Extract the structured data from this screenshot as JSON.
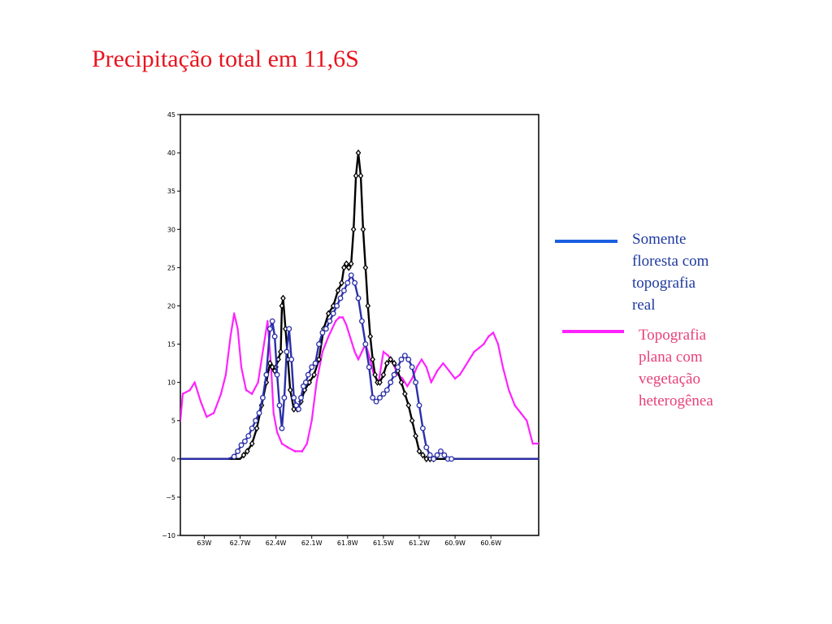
{
  "slide": {
    "title": "Precipitação total em 11,6S"
  },
  "chart_data": {
    "type": "line",
    "title": "",
    "xlabel": "",
    "ylabel": "",
    "xlim": [
      -63.2,
      -60.2
    ],
    "ylim": [
      -10,
      45
    ],
    "y_ticks": [
      -10,
      -5,
      0,
      5,
      10,
      15,
      20,
      25,
      30,
      35,
      40,
      45
    ],
    "y_tick_labels": [
      "−10",
      "−5",
      "0",
      "5",
      "10",
      "15",
      "20",
      "25",
      "30",
      "35",
      "40",
      "45"
    ],
    "x_ticks": [
      -63.0,
      -62.7,
      -62.4,
      -62.1,
      -61.8,
      -61.5,
      -61.2,
      -60.9,
      -60.6
    ],
    "x_tick_labels": [
      "63W",
      "62.7W",
      "62.4W",
      "62.1W",
      "61.8W",
      "61.5W",
      "61.2W",
      "60.9W",
      "60.6W"
    ],
    "grid": false,
    "legend_position": "right",
    "series": [
      {
        "name": "Topografia plana com vegetação heterogênea",
        "color": "#ff22ff",
        "marker": "none",
        "x": [
          -63.2,
          -63.18,
          -63.12,
          -63.08,
          -63.03,
          -62.98,
          -62.92,
          -62.86,
          -62.82,
          -62.78,
          -62.75,
          -62.72,
          -62.69,
          -62.65,
          -62.6,
          -62.55,
          -62.5,
          -62.47,
          -62.44,
          -62.42,
          -62.39,
          -62.35,
          -62.3,
          -62.24,
          -62.18,
          -62.14,
          -62.1,
          -62.06,
          -62.01,
          -61.96,
          -61.93,
          -61.9,
          -61.87,
          -61.84,
          -61.81,
          -61.78,
          -61.74,
          -61.71,
          -61.68,
          -61.65,
          -61.62,
          -61.58,
          -61.54,
          -61.5,
          -61.46,
          -61.42,
          -61.38,
          -61.34,
          -61.3,
          -61.26,
          -61.22,
          -61.18,
          -61.14,
          -61.1,
          -61.05,
          -61.0,
          -60.95,
          -60.9,
          -60.86,
          -60.82,
          -60.78,
          -60.74,
          -60.7,
          -60.66,
          -60.62,
          -60.58,
          -60.54,
          -60.5,
          -60.45,
          -60.4,
          -60.35,
          -60.3,
          -60.25,
          -60.2
        ],
        "y": [
          5,
          8.5,
          9,
          10,
          7.5,
          5.5,
          6,
          8.5,
          11,
          16,
          19,
          17,
          12,
          9,
          8.5,
          10,
          15,
          18,
          12,
          6,
          3.5,
          2,
          1.5,
          1,
          1,
          2,
          5,
          10,
          14,
          16,
          17,
          18,
          18.5,
          18.5,
          17.5,
          16,
          14,
          13,
          14,
          15,
          13.5,
          11,
          10,
          14,
          13.5,
          12.5,
          11,
          10.5,
          9.5,
          10.5,
          12,
          13,
          12,
          10,
          11.5,
          12.5,
          11.5,
          10.5,
          11,
          12,
          13,
          14,
          14.5,
          15,
          16,
          16.5,
          15,
          12,
          9,
          7,
          6,
          5,
          2,
          2
        ]
      },
      {
        "name": "",
        "color": "#000000",
        "marker": "diamond",
        "x": [
          -63.2,
          -63.0,
          -62.8,
          -62.7,
          -62.67,
          -62.64,
          -62.6,
          -62.56,
          -62.52,
          -62.48,
          -62.45,
          -62.43,
          -62.41,
          -62.4,
          -62.38,
          -62.36,
          -62.35,
          -62.34,
          -62.32,
          -62.3,
          -62.28,
          -62.25,
          -62.22,
          -62.19,
          -62.16,
          -62.12,
          -62.08,
          -62.04,
          -62.0,
          -61.96,
          -61.92,
          -61.88,
          -61.85,
          -61.83,
          -61.81,
          -61.79,
          -61.77,
          -61.75,
          -61.73,
          -61.71,
          -61.69,
          -61.67,
          -61.65,
          -61.63,
          -61.61,
          -61.59,
          -61.57,
          -61.55,
          -61.53,
          -61.5,
          -61.47,
          -61.44,
          -61.41,
          -61.38,
          -61.35,
          -61.32,
          -61.29,
          -61.26,
          -61.23,
          -61.2,
          -61.17,
          -61.14,
          -61.11,
          -61.08,
          -61.05,
          -61.0,
          -60.9,
          -60.8,
          -60.6,
          -60.2
        ],
        "y": [
          0,
          0,
          0,
          0,
          0.5,
          1,
          2,
          4,
          7,
          10,
          12.5,
          12,
          11.5,
          12,
          13,
          14,
          20,
          21,
          17,
          13,
          9,
          6.5,
          6.5,
          7.5,
          9,
          10,
          11,
          13,
          17,
          19,
          20,
          22,
          23,
          25,
          25.5,
          25,
          25.5,
          30,
          37,
          40,
          37,
          30,
          25,
          20,
          16,
          13,
          11,
          10,
          10,
          11,
          12.5,
          13,
          12.5,
          11.5,
          10,
          8.5,
          7,
          5,
          3,
          1,
          0.5,
          0,
          0,
          0,
          0,
          0,
          0,
          0,
          0,
          0
        ]
      },
      {
        "name": "Somente floresta com topografia real",
        "color": "#2b2fa8",
        "marker": "circle",
        "x": [
          -63.2,
          -63.0,
          -62.8,
          -62.75,
          -62.72,
          -62.69,
          -62.66,
          -62.63,
          -62.6,
          -62.57,
          -62.54,
          -62.51,
          -62.48,
          -62.45,
          -62.43,
          -62.41,
          -62.39,
          -62.37,
          -62.35,
          -62.33,
          -62.31,
          -62.29,
          -62.27,
          -62.25,
          -62.23,
          -62.21,
          -62.19,
          -62.17,
          -62.15,
          -62.13,
          -62.1,
          -62.07,
          -62.04,
          -62.01,
          -61.98,
          -61.95,
          -61.92,
          -61.89,
          -61.86,
          -61.83,
          -61.8,
          -61.77,
          -61.74,
          -61.71,
          -61.68,
          -61.65,
          -61.62,
          -61.59,
          -61.56,
          -61.53,
          -61.5,
          -61.47,
          -61.44,
          -61.41,
          -61.38,
          -61.35,
          -61.32,
          -61.29,
          -61.26,
          -61.23,
          -61.2,
          -61.17,
          -61.14,
          -61.11,
          -61.08,
          -61.05,
          -61.02,
          -60.99,
          -60.96,
          -60.93,
          -60.9,
          -60.87,
          -60.84,
          -60.8,
          -60.6,
          -60.2
        ],
        "y": [
          0,
          0,
          0,
          0.3,
          1,
          1.8,
          2.3,
          3,
          4,
          5,
          6,
          8,
          11,
          17,
          18,
          16,
          11,
          7,
          4,
          8,
          14,
          17,
          13,
          8,
          7,
          6.5,
          8,
          9.5,
          10,
          11,
          12,
          12.5,
          15,
          16.5,
          17,
          18,
          19,
          20,
          21,
          22,
          23,
          24,
          23,
          21,
          18,
          15,
          12,
          8,
          7.5,
          8,
          8.5,
          9,
          10,
          11,
          12,
          13,
          13.5,
          13,
          12,
          10,
          7,
          4,
          1.5,
          0.5,
          0,
          0.5,
          1,
          0.5,
          0,
          0,
          0,
          0,
          0,
          0,
          0,
          0
        ]
      }
    ]
  },
  "legend": [
    {
      "label": "Somente\nfloresta com\ntopografia\nreal",
      "color": "#1a5fe0",
      "text_color": "#1f3a9e"
    },
    {
      "label": "Topografia\nplana com\nvegetação\nheterogênea",
      "color": "#ff22ff",
      "text_color": "#e8417a"
    }
  ]
}
